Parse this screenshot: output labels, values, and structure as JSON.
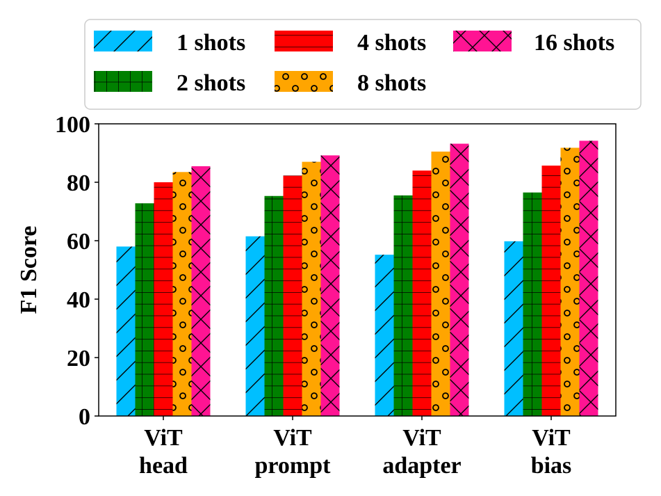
{
  "chart_data": {
    "type": "bar",
    "categories": [
      [
        "ViT",
        "head"
      ],
      [
        "ViT",
        "prompt"
      ],
      [
        "ViT",
        "adapter"
      ],
      [
        "ViT",
        "bias"
      ]
    ],
    "ylabel": "F1 Score",
    "ylim": [
      0,
      100
    ],
    "yticks": [
      "0",
      "20",
      "40",
      "60",
      "80",
      "100"
    ],
    "legend_position": "top",
    "series": [
      {
        "name": "1 shots",
        "color": "#00bfff",
        "hatch": "diagonal",
        "values": [
          58.0,
          61.5,
          55.2,
          59.8
        ]
      },
      {
        "name": "2 shots",
        "color": "#008000",
        "hatch": "grid",
        "values": [
          72.8,
          75.3,
          75.5,
          76.5
        ]
      },
      {
        "name": "4 shots",
        "color": "#ff0000",
        "hatch": "horizontal",
        "values": [
          80.0,
          82.3,
          84.0,
          85.7
        ]
      },
      {
        "name": "8 shots",
        "color": "#ffa500",
        "hatch": "circles",
        "values": [
          83.5,
          87.0,
          90.5,
          91.8
        ]
      },
      {
        "name": "16 shots",
        "color": "#ff1493",
        "hatch": "cross",
        "values": [
          85.5,
          89.2,
          93.2,
          94.2
        ]
      }
    ]
  }
}
